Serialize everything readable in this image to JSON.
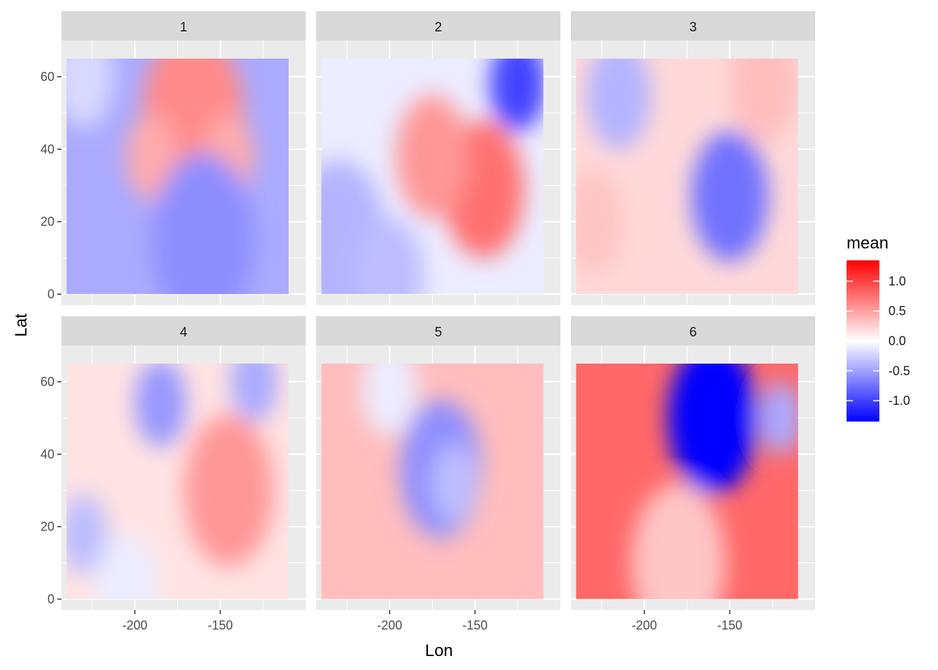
{
  "chart_data": {
    "type": "heatmap",
    "facets": [
      "1",
      "2",
      "3",
      "4",
      "5",
      "6"
    ],
    "xlabel": "Lon",
    "ylabel": "Lat",
    "x_ticks": [
      -200,
      -150
    ],
    "y_ticks": [
      0,
      20,
      40,
      60
    ],
    "xlim": [
      -243,
      -100
    ],
    "ylim": [
      -3,
      70
    ],
    "data_extent": {
      "lon": [
        -240,
        -110
      ],
      "lat": [
        0,
        65
      ]
    },
    "grid": true,
    "legend": {
      "title": "mean",
      "position": "right",
      "range": [
        -1.35,
        1.35
      ],
      "ticks": [
        1.0,
        0.5,
        0.0,
        -0.5,
        -1.0
      ],
      "tick_labels": [
        "1.0",
        "0.5",
        "0.0",
        "-0.5",
        "-1.0"
      ],
      "colors": {
        "low": "#0000ff",
        "mid": "#ffffff",
        "high": "#ff0000"
      }
    },
    "panels": [
      {
        "facet": "1",
        "background": -0.45,
        "features": [
          {
            "lon": -166,
            "lat": 49,
            "value": 0.62,
            "radius": 24
          },
          {
            "lon": -190,
            "lat": 38,
            "value": 0.45,
            "radius": 12
          },
          {
            "lon": -145,
            "lat": 38,
            "value": 0.45,
            "radius": 12
          },
          {
            "lon": -160,
            "lat": 15,
            "value": -0.6,
            "radius": 24
          },
          {
            "lon": -230,
            "lat": 60,
            "value": -0.2,
            "radius": 14
          }
        ]
      },
      {
        "facet": "2",
        "background": -0.1,
        "features": [
          {
            "lon": -145,
            "lat": 29,
            "value": 0.75,
            "radius": 19
          },
          {
            "lon": -175,
            "lat": 38,
            "value": 0.55,
            "radius": 17
          },
          {
            "lon": -125,
            "lat": 58,
            "value": -1.0,
            "radius": 13
          },
          {
            "lon": -230,
            "lat": 15,
            "value": -0.4,
            "radius": 22
          },
          {
            "lon": -200,
            "lat": 5,
            "value": -0.35,
            "radius": 16
          }
        ]
      },
      {
        "facet": "3",
        "background": 0.2,
        "features": [
          {
            "lon": -150,
            "lat": 27,
            "value": -0.75,
            "radius": 18
          },
          {
            "lon": -215,
            "lat": 55,
            "value": -0.4,
            "radius": 15
          },
          {
            "lon": -130,
            "lat": 58,
            "value": 0.35,
            "radius": 16
          },
          {
            "lon": -230,
            "lat": 20,
            "value": 0.3,
            "radius": 15
          }
        ]
      },
      {
        "facet": "4",
        "background": 0.15,
        "features": [
          {
            "lon": -145,
            "lat": 30,
            "value": 0.55,
            "radius": 21
          },
          {
            "lon": -185,
            "lat": 54,
            "value": -0.55,
            "radius": 12
          },
          {
            "lon": -130,
            "lat": 60,
            "value": -0.45,
            "radius": 11
          },
          {
            "lon": -230,
            "lat": 18,
            "value": -0.35,
            "radius": 11
          },
          {
            "lon": -205,
            "lat": 3,
            "value": -0.1,
            "radius": 15
          }
        ]
      },
      {
        "facet": "5",
        "background": 0.35,
        "features": [
          {
            "lon": -170,
            "lat": 36,
            "value": -0.6,
            "radius": 19
          },
          {
            "lon": -162,
            "lat": 32,
            "value": -0.35,
            "radius": 11
          },
          {
            "lon": -200,
            "lat": 58,
            "value": -0.1,
            "radius": 13
          },
          {
            "lon": -240,
            "lat": 20,
            "value": 0.35,
            "radius": 15
          }
        ]
      },
      {
        "facet": "6",
        "background": 0.8,
        "features": [
          {
            "lon": -160,
            "lat": 50,
            "value": -1.9,
            "radius": 21
          },
          {
            "lon": -180,
            "lat": 10,
            "value": 0.3,
            "radius": 22
          },
          {
            "lon": -120,
            "lat": 50,
            "value": -0.45,
            "radius": 10
          }
        ]
      }
    ]
  }
}
